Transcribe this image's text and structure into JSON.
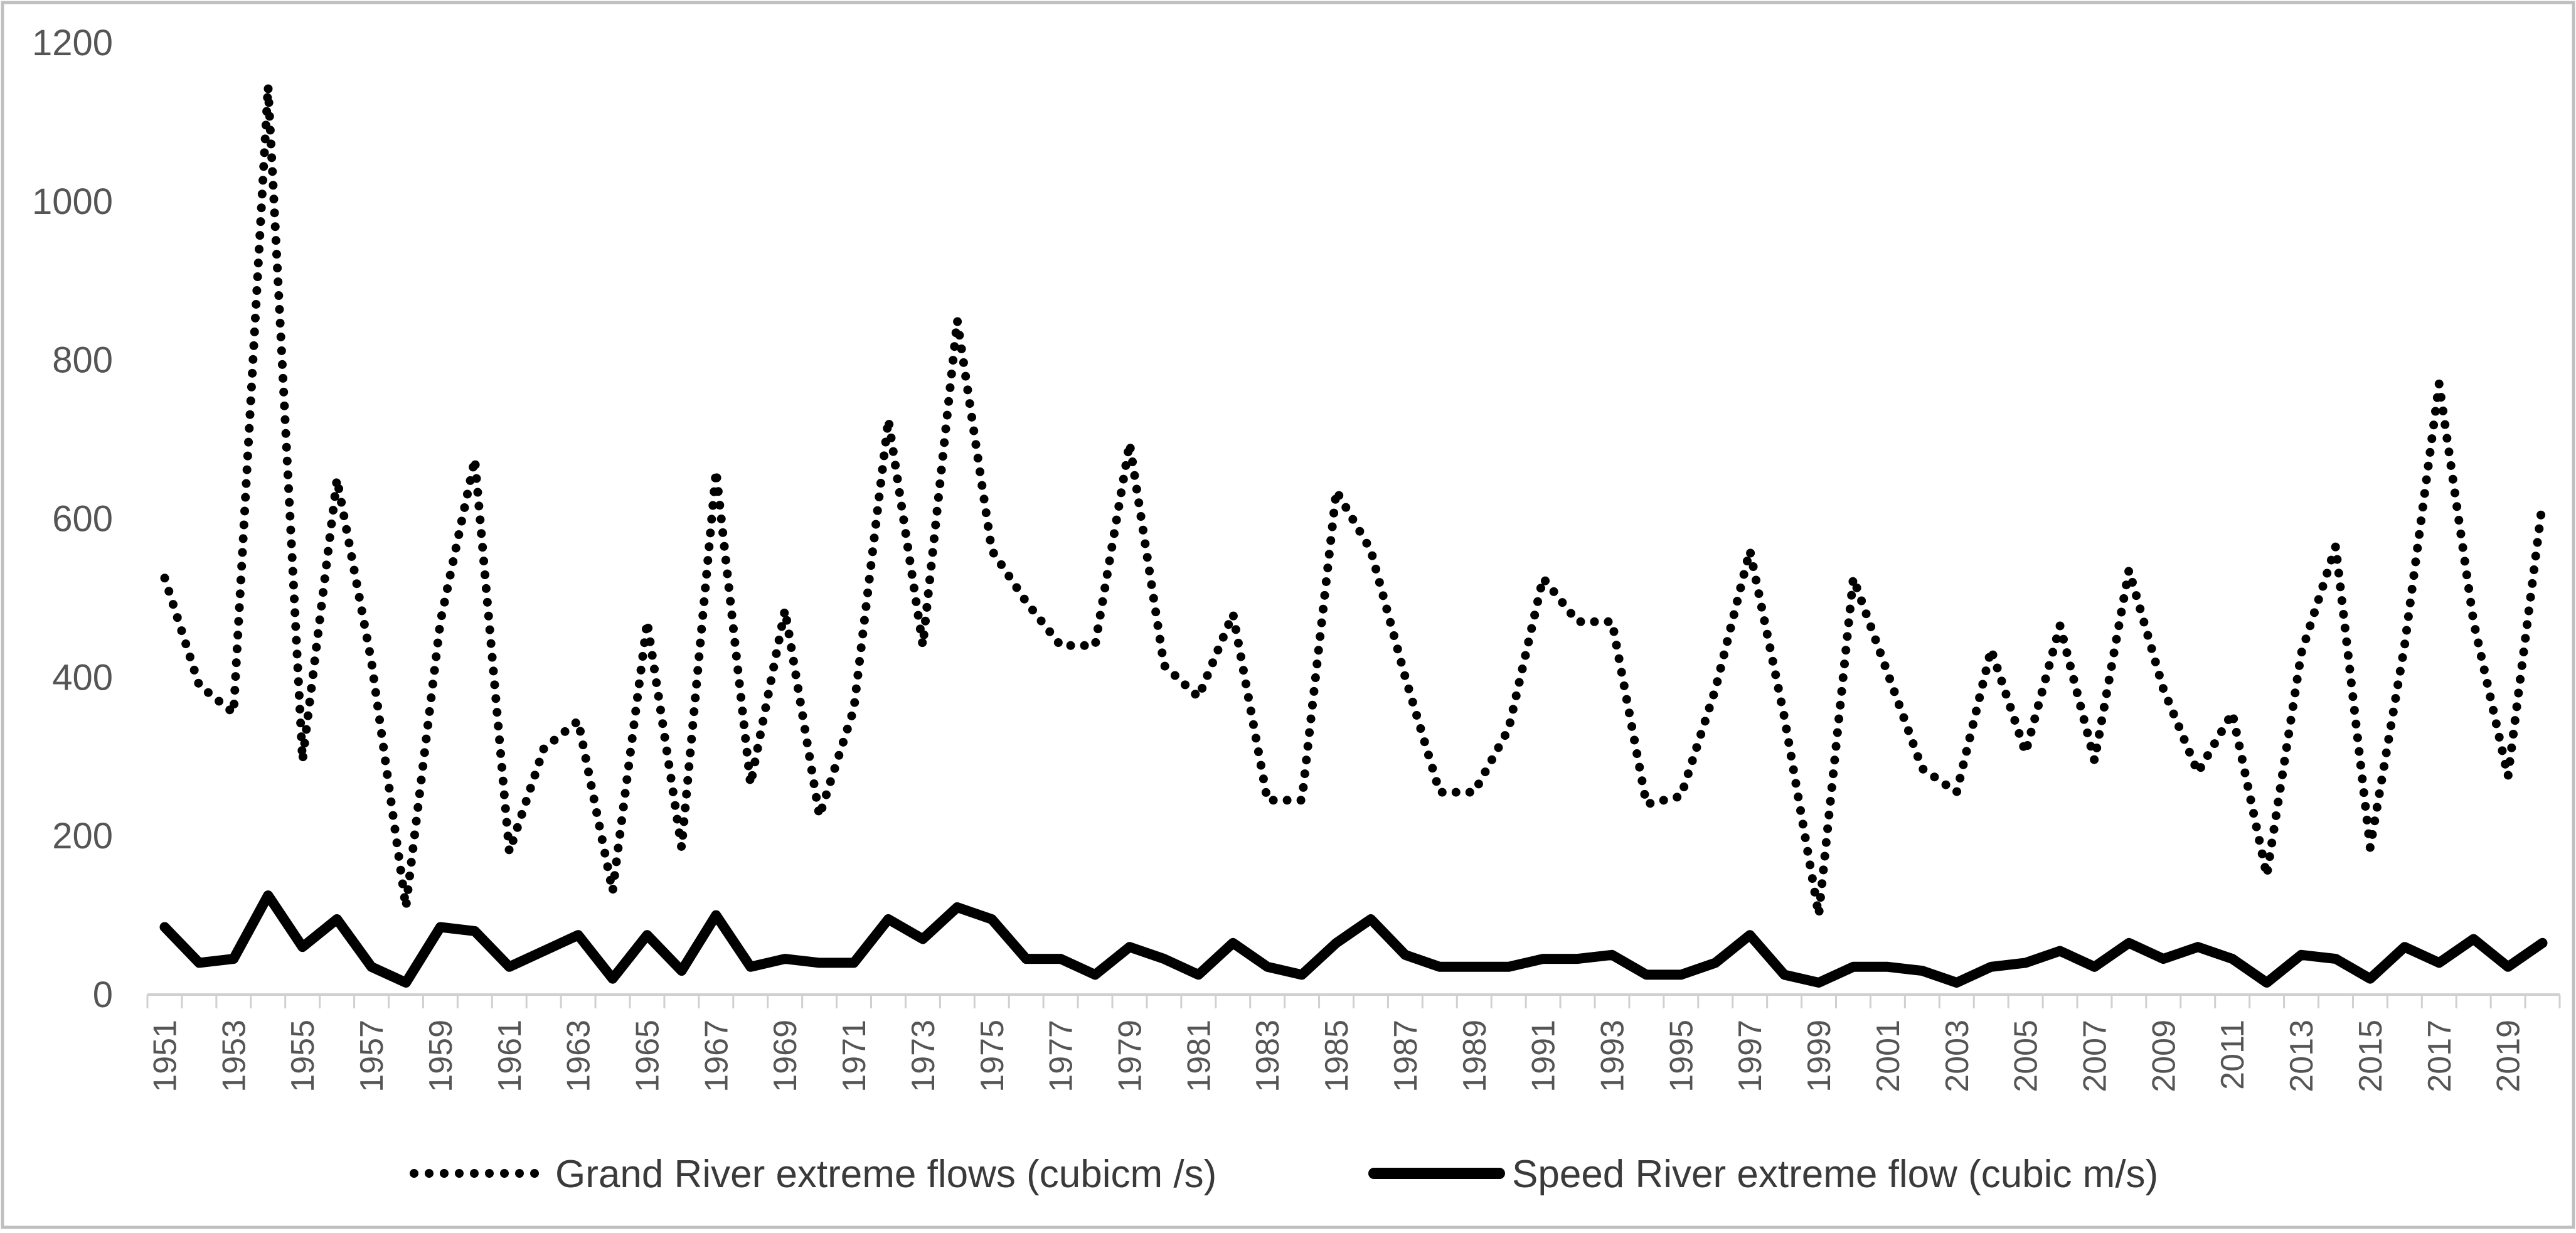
{
  "chart_data": {
    "type": "line",
    "x": [
      1951,
      1952,
      1953,
      1954,
      1955,
      1956,
      1957,
      1958,
      1959,
      1960,
      1961,
      1962,
      1963,
      1964,
      1965,
      1966,
      1967,
      1968,
      1969,
      1970,
      1971,
      1972,
      1973,
      1974,
      1975,
      1976,
      1977,
      1978,
      1979,
      1980,
      1981,
      1982,
      1983,
      1984,
      1985,
      1986,
      1987,
      1988,
      1989,
      1990,
      1991,
      1992,
      1993,
      1994,
      1995,
      1996,
      1997,
      1998,
      1999,
      2000,
      2001,
      2002,
      2003,
      2004,
      2005,
      2006,
      2007,
      2008,
      2009,
      2010,
      2011,
      2012,
      2013,
      2014,
      2015,
      2016,
      2017,
      2018,
      2019,
      2020
    ],
    "x_tick_labels": [
      "1951",
      "1953",
      "1955",
      "1957",
      "1959",
      "1961",
      "1963",
      "1965",
      "1967",
      "1969",
      "1971",
      "1973",
      "1975",
      "1977",
      "1979",
      "1981",
      "1983",
      "1985",
      "1987",
      "1989",
      "1991",
      "1993",
      "1995",
      "1997",
      "1999",
      "2001",
      "2003",
      "2005",
      "2007",
      "2009",
      "2011",
      "2013",
      "2015",
      "2017",
      "2019"
    ],
    "y_tick_labels": [
      "0",
      "200",
      "400",
      "600",
      "800",
      "1000",
      "1200"
    ],
    "ylim": [
      0,
      1200
    ],
    "grid": false,
    "legend_position": "bottom",
    "series": [
      {
        "name": "Grand River extreme flows (cubicm /s)",
        "style": "dotted",
        "color": "#000000",
        "values": [
          525,
          390,
          355,
          1145,
          295,
          650,
          420,
          110,
          470,
          675,
          180,
          310,
          345,
          130,
          470,
          185,
          660,
          265,
          485,
          225,
          360,
          725,
          440,
          850,
          560,
          495,
          440,
          440,
          695,
          415,
          375,
          480,
          245,
          245,
          635,
          560,
          400,
          255,
          255,
          335,
          525,
          470,
          470,
          240,
          250,
          385,
          560,
          350,
          100,
          525,
          405,
          285,
          255,
          435,
          305,
          465,
          295,
          535,
          385,
          280,
          355,
          150,
          430,
          565,
          185,
          440,
          770,
          470,
          275,
          620
        ]
      },
      {
        "name": "Speed River extreme flow (cubic m/s)",
        "style": "solid",
        "color": "#000000",
        "values": [
          85,
          40,
          45,
          125,
          60,
          95,
          35,
          15,
          85,
          80,
          35,
          55,
          75,
          20,
          75,
          30,
          100,
          35,
          45,
          40,
          40,
          95,
          70,
          110,
          95,
          45,
          45,
          25,
          60,
          45,
          25,
          65,
          35,
          25,
          65,
          95,
          50,
          35,
          35,
          35,
          45,
          45,
          50,
          25,
          25,
          40,
          75,
          25,
          15,
          35,
          35,
          30,
          15,
          35,
          40,
          55,
          35,
          65,
          45,
          60,
          45,
          15,
          50,
          45,
          20,
          60,
          40,
          70,
          35,
          65
        ]
      }
    ]
  }
}
